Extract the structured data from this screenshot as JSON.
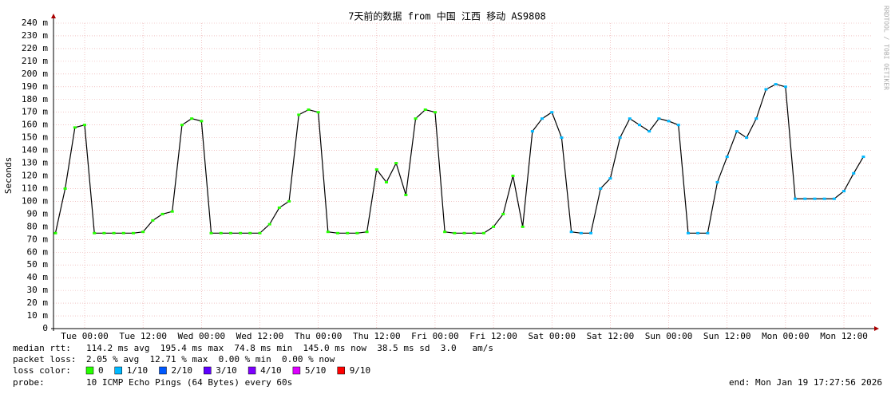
{
  "chart_data": {
    "type": "line",
    "title": "7天前的数据 from 中国 江西 移动 AS9808",
    "y_label": "Seconds",
    "watermark": "RRDTOOL / TOBI OETIKER",
    "xlim": [
      -6.4,
      161.9
    ],
    "xticks": [
      {
        "value": 0,
        "label": "Tue 00:00"
      },
      {
        "value": 12,
        "label": "Tue 12:00"
      },
      {
        "value": 24,
        "label": "Wed 00:00"
      },
      {
        "value": 36,
        "label": "Wed 12:00"
      },
      {
        "value": 48,
        "label": "Thu 00:00"
      },
      {
        "value": 60,
        "label": "Thu 12:00"
      },
      {
        "value": 72,
        "label": "Fri 00:00"
      },
      {
        "value": 84,
        "label": "Fri 12:00"
      },
      {
        "value": 96,
        "label": "Sat 00:00"
      },
      {
        "value": 108,
        "label": "Sat 12:00"
      },
      {
        "value": 120,
        "label": "Sun 00:00"
      },
      {
        "value": 132,
        "label": "Sun 12:00"
      },
      {
        "value": 144,
        "label": "Mon 00:00"
      },
      {
        "value": 156,
        "label": "Mon 12:00"
      }
    ],
    "ylim": [
      0,
      240
    ],
    "yticks": [
      0,
      {
        "value": 10,
        "label": "10 m"
      },
      {
        "value": 20,
        "label": "20 m"
      },
      {
        "value": 30,
        "label": "30 m"
      },
      {
        "value": 40,
        "label": "40 m"
      },
      {
        "value": 50,
        "label": "50 m"
      },
      {
        "value": 60,
        "label": "60 m"
      },
      {
        "value": 70,
        "label": "70 m"
      },
      {
        "value": 80,
        "label": "80 m"
      },
      {
        "value": 90,
        "label": "90 m"
      },
      {
        "value": 100,
        "label": "100 m"
      },
      {
        "value": 110,
        "label": "110 m"
      },
      {
        "value": 120,
        "label": "120 m"
      },
      {
        "value": 130,
        "label": "130 m"
      },
      {
        "value": 140,
        "label": "140 m"
      },
      {
        "value": 150,
        "label": "150 m"
      },
      {
        "value": 160,
        "label": "160 m"
      },
      {
        "value": 170,
        "label": "170 m"
      },
      {
        "value": 180,
        "label": "180 m"
      },
      {
        "value": 190,
        "label": "190 m"
      },
      {
        "value": 200,
        "label": "200 m"
      },
      {
        "value": 210,
        "label": "210 m"
      },
      {
        "value": 220,
        "label": "220 m"
      },
      {
        "value": 230,
        "label": "230 m"
      },
      {
        "value": 240,
        "label": "240 m"
      }
    ],
    "grid": true,
    "x": [
      -6,
      -4,
      -2,
      0,
      2,
      4,
      6,
      8,
      10,
      12,
      14,
      16,
      18,
      20,
      22,
      24,
      26,
      28,
      30,
      32,
      34,
      36,
      38,
      40,
      42,
      44,
      46,
      48,
      50,
      52,
      54,
      56,
      58,
      60,
      62,
      64,
      66,
      68,
      70,
      72,
      74,
      76,
      78,
      80,
      82,
      84,
      86,
      88,
      90,
      92,
      94,
      96,
      98,
      100,
      102,
      104,
      106,
      108,
      110,
      112,
      114,
      116,
      118,
      120,
      122,
      124,
      126,
      128,
      130,
      132,
      134,
      136,
      138,
      140,
      142,
      144,
      146,
      148,
      150,
      152,
      154,
      156,
      158,
      160
    ],
    "series": [
      {
        "color": "#000000",
        "values": [
          75,
          110,
          158,
          160,
          75,
          75,
          75,
          75,
          75,
          76,
          85,
          90,
          92,
          160,
          165,
          163,
          75,
          75,
          75,
          75,
          75,
          75,
          82,
          95,
          100,
          168,
          172,
          170,
          76,
          75,
          75,
          75,
          76,
          125,
          115,
          130,
          105,
          165,
          172,
          170,
          76,
          75,
          75,
          75,
          75,
          80,
          90,
          120,
          80,
          155,
          165,
          170,
          150,
          76,
          75,
          75,
          110,
          118,
          150,
          165,
          160,
          155,
          165,
          163,
          160,
          75,
          75,
          75,
          115,
          135,
          155,
          150,
          165,
          188,
          192,
          190,
          102,
          102,
          102,
          102,
          102,
          108,
          122,
          135
        ],
        "loss": [
          0,
          0,
          0,
          0,
          0,
          0,
          0,
          0,
          0,
          0,
          0,
          0,
          0,
          0,
          0,
          0,
          0,
          0,
          0,
          0,
          0,
          0,
          0,
          0,
          0,
          0,
          0,
          0,
          0,
          0,
          0,
          0,
          0,
          0,
          0,
          0,
          0,
          0,
          0,
          0,
          0,
          0,
          0,
          0,
          0,
          0,
          0,
          0,
          0,
          1,
          1,
          1,
          1,
          1,
          1,
          1,
          1,
          1,
          1,
          1,
          1,
          1,
          1,
          1,
          1,
          1,
          1,
          1,
          1,
          1,
          1,
          1,
          1,
          1,
          1,
          1,
          1,
          1,
          1,
          1,
          1,
          1,
          1,
          1
        ]
      }
    ],
    "loss_legend": {
      "label": "loss color:",
      "entries": [
        {
          "value": 0,
          "label": "0",
          "color": "#26ff00"
        },
        {
          "value": 1,
          "label": "1/10",
          "color": "#00b8ff"
        },
        {
          "value": 2,
          "label": "2/10",
          "color": "#0059ff"
        },
        {
          "value": 3,
          "label": "3/10",
          "color": "#5e00ff"
        },
        {
          "value": 4,
          "label": "4/10",
          "color": "#7e00ff"
        },
        {
          "value": 5,
          "label": "5/10",
          "color": "#dd00ff"
        },
        {
          "value": 9,
          "label": "9/10",
          "color": "#ff0000"
        }
      ]
    },
    "stats": [
      {
        "label": "median rtt:",
        "text": "114.2 ms avg  195.4 ms max  74.8 ms min  145.0 ms now  38.5 ms sd  3.0   am/s"
      },
      {
        "label": "packet loss:",
        "text": "2.05 % avg  12.71 % max  0.00 % min  0.00 % now"
      }
    ],
    "probe": {
      "label": "probe:",
      "text": "10 ICMP Echo Pings (64 Bytes) every 60s"
    },
    "end": "end: Mon Jan 19 17:27:56 2026"
  }
}
